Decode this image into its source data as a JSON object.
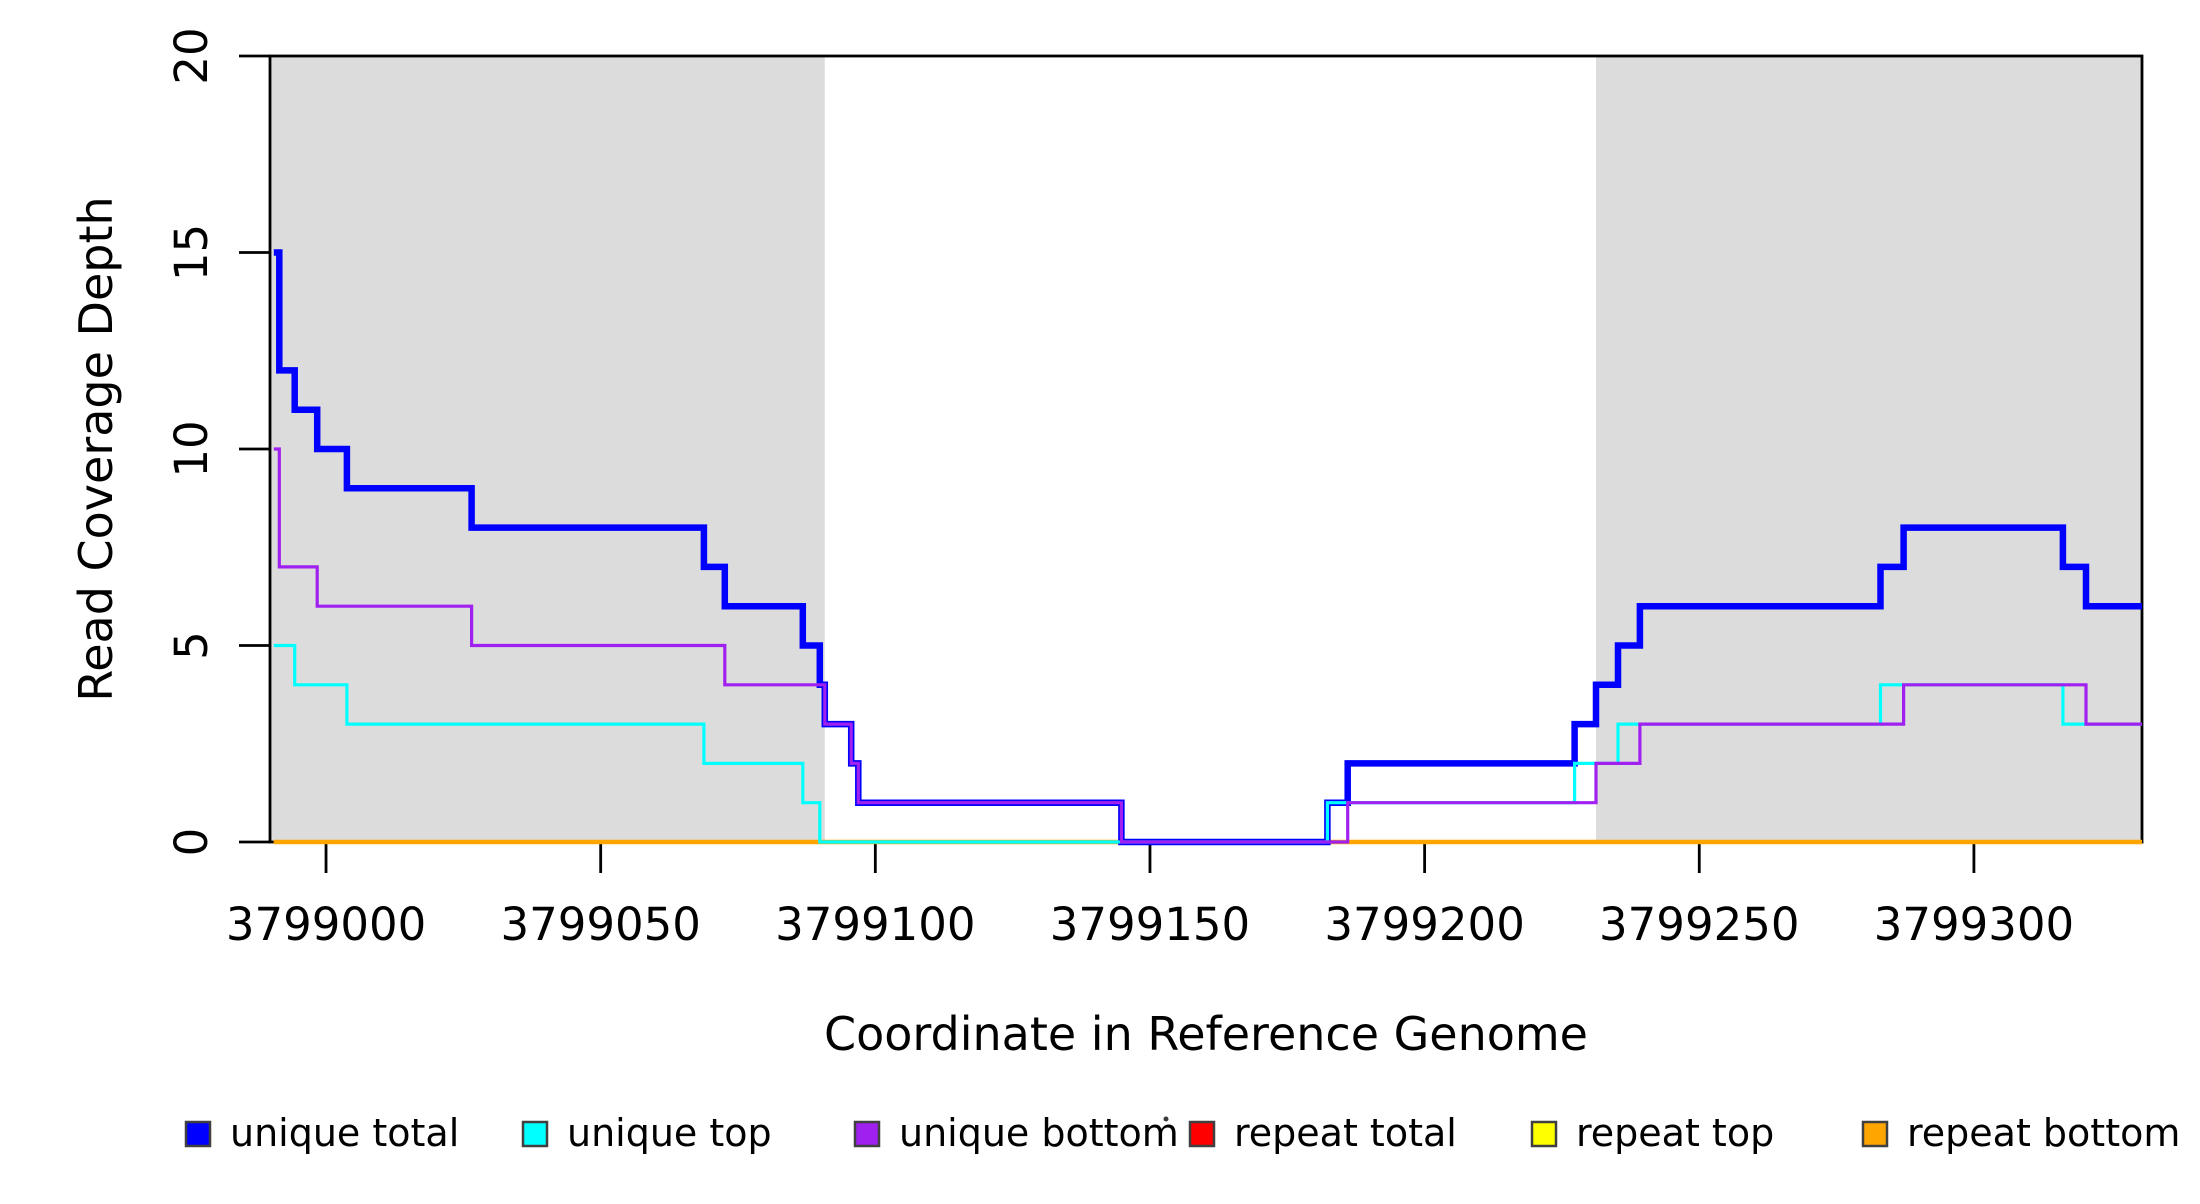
{
  "page": {
    "background": "#ffffff"
  },
  "chart_data": {
    "type": "line",
    "subtype": "step-coverage",
    "title": "",
    "xlabel": "Coordinate in Reference Genome",
    "ylabel": "Read Coverage Depth",
    "xlim": [
      3798989.8,
      3799330.6
    ],
    "ylim": [
      0,
      20
    ],
    "grid": false,
    "legend_position": "bottom",
    "x_ticks": [
      {
        "value": 3799000,
        "label": "3799000"
      },
      {
        "value": 3799050,
        "label": "3799050"
      },
      {
        "value": 3799100,
        "label": "3799100"
      },
      {
        "value": 3799150,
        "label": "3799150"
      },
      {
        "value": 3799200,
        "label": "3799200"
      },
      {
        "value": 3799250,
        "label": "3799250"
      },
      {
        "value": 3799300,
        "label": "3799300"
      }
    ],
    "y_ticks": [
      {
        "value": 0,
        "label": "0"
      },
      {
        "value": 5,
        "label": "5"
      },
      {
        "value": 10,
        "label": "10"
      },
      {
        "value": 15,
        "label": "15"
      },
      {
        "value": 20,
        "label": "20"
      }
    ],
    "shaded_regions": [
      {
        "name": "left-repeat-region",
        "x1": 3798989.8,
        "x2": 3799090.8,
        "color": "#DCDCDC"
      },
      {
        "name": "right-repeat-region",
        "x1": 3799231.2,
        "x2": 3799330.6,
        "color": "#DCDCDC"
      }
    ],
    "series": [
      {
        "name": "repeat total",
        "color": "#FF0000",
        "step_points": [
          [
            3798990.5,
            0
          ]
        ],
        "x_end": 3799330.6
      },
      {
        "name": "repeat top",
        "color": "#FFFF00",
        "step_points": [
          [
            3798990.5,
            0
          ]
        ],
        "x_end": 3799330.6
      },
      {
        "name": "repeat bottom",
        "color": "#FFA500",
        "step_points": [
          [
            3798990.5,
            0
          ]
        ],
        "x_end": 3799330.6
      },
      {
        "name": "unique total",
        "color": "#0000FF",
        "step_points": [
          [
            3798990.5,
            15
          ],
          [
            3798991.5,
            12
          ],
          [
            3798994.3,
            11
          ],
          [
            3798998.4,
            10
          ],
          [
            3799003.8,
            9
          ],
          [
            3799026.5,
            8
          ],
          [
            3799068.8,
            7
          ],
          [
            3799072.6,
            6
          ],
          [
            3799086.8,
            5
          ],
          [
            3799089.9,
            4
          ],
          [
            3799090.8,
            3
          ],
          [
            3799095.6,
            2
          ],
          [
            3799096.9,
            1
          ],
          [
            3799144.8,
            0
          ],
          [
            3799182.3,
            1
          ],
          [
            3799186.0,
            2
          ],
          [
            3799227.3,
            3
          ],
          [
            3799231.2,
            4
          ],
          [
            3799235.2,
            5
          ],
          [
            3799239.2,
            6
          ],
          [
            3799283.0,
            7
          ],
          [
            3799287.2,
            8
          ],
          [
            3799316.2,
            7
          ],
          [
            3799320.4,
            6
          ]
        ],
        "x_end": 3799330.6
      },
      {
        "name": "unique top",
        "color": "#00FFFF",
        "step_points": [
          [
            3798990.5,
            5
          ],
          [
            3798994.3,
            4
          ],
          [
            3799003.8,
            3
          ],
          [
            3799068.8,
            2
          ],
          [
            3799086.8,
            1
          ],
          [
            3799089.9,
            0
          ],
          [
            3799182.3,
            1
          ],
          [
            3799227.3,
            2
          ],
          [
            3799235.2,
            3
          ],
          [
            3799283.0,
            4
          ],
          [
            3799316.2,
            3
          ]
        ],
        "x_end": 3799330.6
      },
      {
        "name": "unique bottom",
        "color": "#A020F0",
        "step_points": [
          [
            3798990.5,
            10
          ],
          [
            3798991.5,
            7
          ],
          [
            3798998.4,
            6
          ],
          [
            3799026.5,
            5
          ],
          [
            3799072.6,
            4
          ],
          [
            3799090.8,
            3
          ],
          [
            3799095.6,
            2
          ],
          [
            3799096.9,
            1
          ],
          [
            3799144.8,
            0
          ],
          [
            3799186.0,
            1
          ],
          [
            3799231.2,
            2
          ],
          [
            3799239.2,
            3
          ],
          [
            3799287.2,
            4
          ],
          [
            3799320.4,
            3
          ]
        ],
        "x_end": 3799330.6
      }
    ]
  },
  "legend": {
    "items": [
      {
        "label": "unique total",
        "color": "#0000FF"
      },
      {
        "label": "unique top",
        "color": "#00FFFF"
      },
      {
        "label": "unique bottom",
        "color": "#A020F0"
      },
      {
        "label": "repeat total",
        "color": "#FF0000"
      },
      {
        "label": "repeat top",
        "color": "#FFFF00"
      },
      {
        "label": "repeat bottom",
        "color": "#FFA500"
      }
    ]
  }
}
